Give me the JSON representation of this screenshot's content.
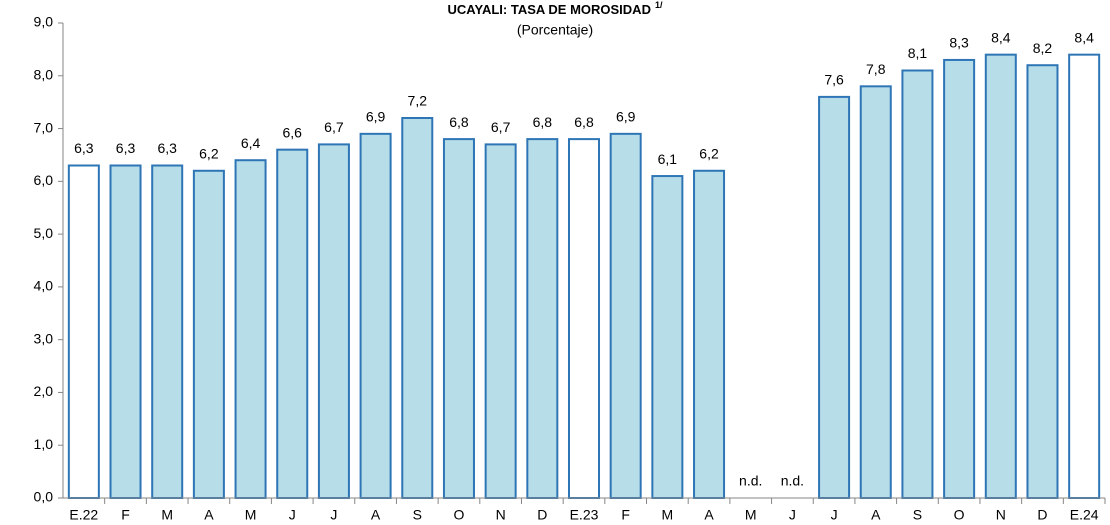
{
  "chart_data": {
    "type": "bar",
    "title": "UCAYALI: TASA DE MOROSIDAD",
    "title_note": "1/",
    "subtitle": "(Porcentaje)",
    "categories": [
      "E.22",
      "F",
      "M",
      "A",
      "M",
      "J",
      "J",
      "A",
      "S",
      "O",
      "N",
      "D",
      "E.23",
      "F",
      "M",
      "A",
      "M",
      "J",
      "J",
      "A",
      "S",
      "O",
      "N",
      "D",
      "E.24"
    ],
    "values": [
      6.3,
      6.3,
      6.3,
      6.2,
      6.4,
      6.6,
      6.7,
      6.9,
      7.2,
      6.8,
      6.7,
      6.8,
      6.8,
      6.9,
      6.1,
      6.2,
      null,
      null,
      7.6,
      7.8,
      8.1,
      8.3,
      8.4,
      8.2,
      8.4
    ],
    "value_labels": [
      "6,3",
      "6,3",
      "6,3",
      "6,2",
      "6,4",
      "6,6",
      "6,7",
      "6,9",
      "7,2",
      "6,8",
      "6,7",
      "6,8",
      "6,8",
      "6,9",
      "6,1",
      "6,2",
      "n.d.",
      "n.d.",
      "7,6",
      "7,8",
      "8,1",
      "8,3",
      "8,4",
      "8,2",
      "8,4"
    ],
    "colors": [
      "#ffffff",
      "#b7dde8",
      "#b7dde8",
      "#b7dde8",
      "#b7dde8",
      "#b7dde8",
      "#b7dde8",
      "#b7dde8",
      "#b7dde8",
      "#b7dde8",
      "#b7dde8",
      "#b7dde8",
      "#ffffff",
      "#b7dde8",
      "#b7dde8",
      "#b7dde8",
      "#b7dde8",
      "#b7dde8",
      "#b7dde8",
      "#b7dde8",
      "#b7dde8",
      "#b7dde8",
      "#b7dde8",
      "#b7dde8",
      "#ffffff"
    ],
    "edge_color": "#2e75b6",
    "ylim": [
      0,
      9
    ],
    "yticks": [
      {
        "value": 0,
        "label": "0,0"
      },
      {
        "value": 1,
        "label": "1,0"
      },
      {
        "value": 2,
        "label": "2,0"
      },
      {
        "value": 3,
        "label": "3,0"
      },
      {
        "value": 4,
        "label": "4,0"
      },
      {
        "value": 5,
        "label": "5,0"
      },
      {
        "value": 6,
        "label": "6,0"
      },
      {
        "value": 7,
        "label": "7,0"
      },
      {
        "value": 8,
        "label": "8,0"
      },
      {
        "value": 9,
        "label": "9,0"
      }
    ],
    "grid": false
  }
}
